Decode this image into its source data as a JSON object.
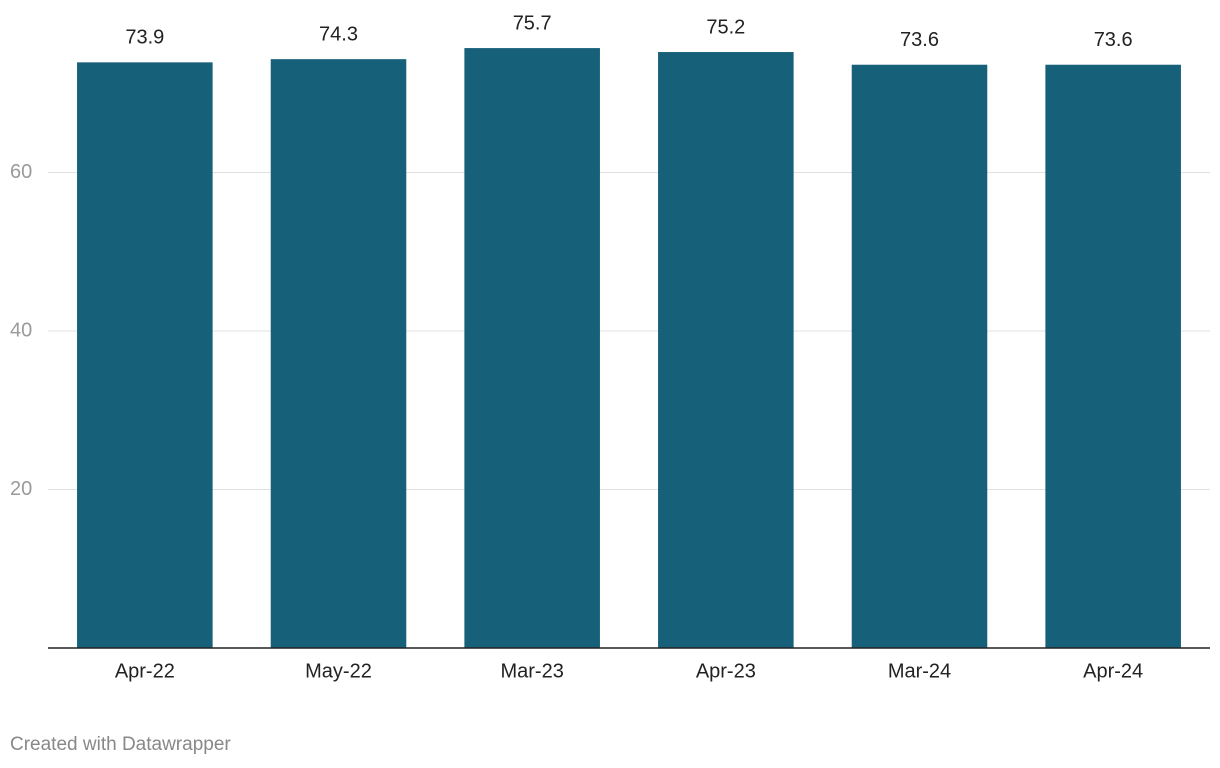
{
  "chart_data": {
    "type": "bar",
    "categories": [
      "Apr-22",
      "May-22",
      "Mar-23",
      "Apr-23",
      "Mar-24",
      "Apr-24"
    ],
    "values": [
      73.9,
      74.3,
      75.7,
      75.2,
      73.6,
      73.6
    ],
    "color": "#17607a",
    "ylim": [
      0,
      80
    ],
    "yticks": [
      20,
      40,
      60
    ],
    "grid": true
  },
  "footer": "Created with Datawrapper"
}
